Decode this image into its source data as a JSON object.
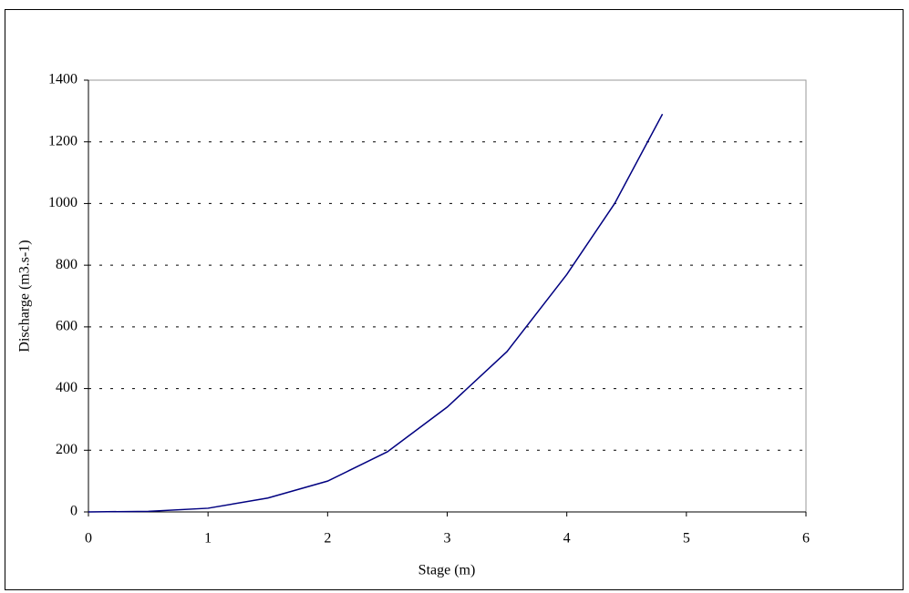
{
  "chart_data": {
    "type": "line",
    "x_label": "Stage (m)",
    "y_label": "Discharge (m3.s-1)",
    "x": [
      0,
      0.5,
      1,
      1.5,
      2,
      2.5,
      3,
      3.5,
      4,
      4.4,
      4.8
    ],
    "series": [
      {
        "color": "#000080",
        "values": [
          0,
          2,
          12,
          45,
          100,
          195,
          340,
          520,
          770,
          1000,
          1290
        ]
      }
    ],
    "xlim": [
      0,
      6
    ],
    "xticks": [
      0,
      1,
      2,
      3,
      4,
      5,
      6
    ],
    "ylim": [
      0,
      1400
    ],
    "yticks": [
      0,
      200,
      400,
      600,
      800,
      1000,
      1200,
      1400
    ],
    "grid": true
  }
}
